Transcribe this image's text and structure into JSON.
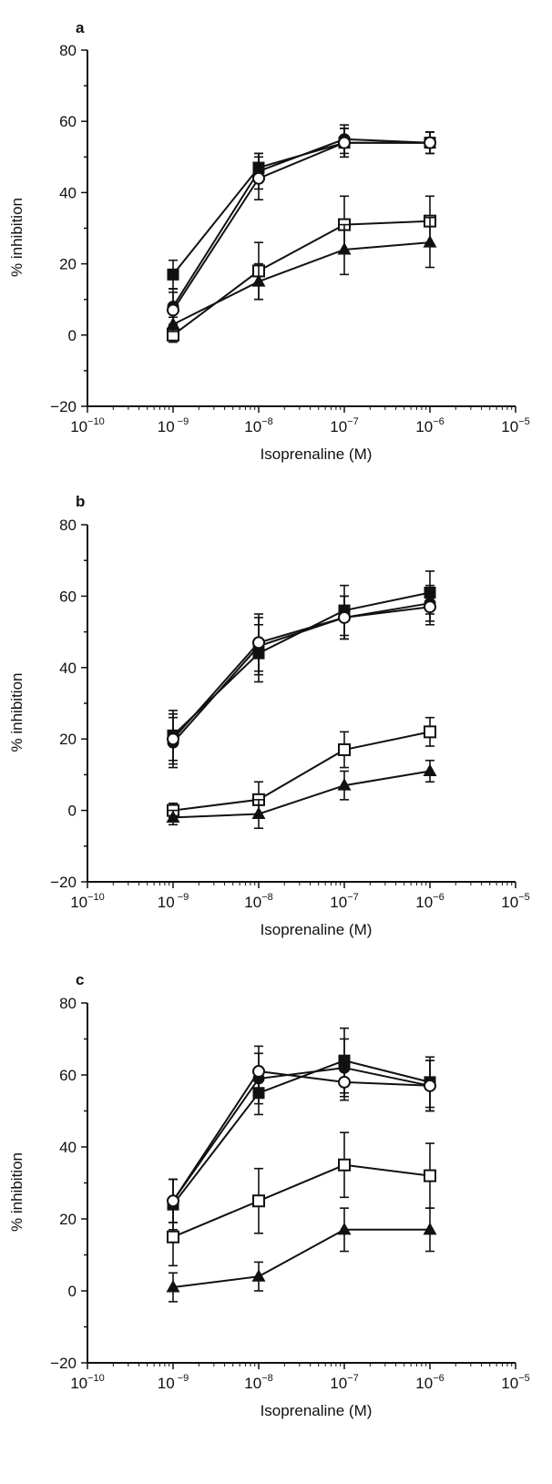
{
  "chart_data": [
    {
      "panel": "a",
      "type": "line",
      "xscale": "log",
      "xlim": [
        1e-10,
        1e-05
      ],
      "ylim": [
        -20,
        80
      ],
      "xlabel": "Isoprenaline (M)",
      "ylabel": "% inhibition",
      "x_ticks": [
        {
          "base": "10",
          "exp": "−10"
        },
        {
          "base": "10",
          "exp": " −9"
        },
        {
          "base": "10",
          "exp": "−8"
        },
        {
          "base": "10",
          "exp": "−7"
        },
        {
          "base": "10",
          "exp": "−6"
        },
        {
          "base": "10",
          "exp": "−5"
        }
      ],
      "y_ticks": [
        "−20",
        "0",
        "20",
        "40",
        "60",
        "80"
      ],
      "x": [
        1e-09,
        1e-08,
        1e-07,
        1e-06
      ],
      "series": [
        {
          "marker": "filled-square",
          "values": [
            17,
            47,
            54,
            54
          ],
          "errors": [
            4,
            4,
            4,
            3
          ]
        },
        {
          "marker": "filled-circle",
          "values": [
            8,
            46,
            55,
            54
          ],
          "errors": [
            5,
            5,
            4,
            3
          ]
        },
        {
          "marker": "open-circle",
          "values": [
            7,
            44,
            54,
            54
          ],
          "errors": [
            5,
            6,
            4,
            3
          ]
        },
        {
          "marker": "open-square",
          "values": [
            0,
            18,
            31,
            32
          ],
          "errors": [
            2,
            8,
            8,
            7
          ]
        },
        {
          "marker": "filled-triangle",
          "values": [
            3,
            15,
            24,
            26
          ],
          "errors": [
            2,
            5,
            7,
            7
          ]
        }
      ]
    },
    {
      "panel": "b",
      "type": "line",
      "xscale": "log",
      "xlim": [
        1e-10,
        1e-05
      ],
      "ylim": [
        -20,
        80
      ],
      "xlabel": "Isoprenaline (M)",
      "ylabel": "% inhibition",
      "x_ticks": [
        {
          "base": "10",
          "exp": "−10"
        },
        {
          "base": "10",
          "exp": " −9"
        },
        {
          "base": "10",
          "exp": "−8"
        },
        {
          "base": "10",
          "exp": "−7"
        },
        {
          "base": "10",
          "exp": "−6"
        },
        {
          "base": "10",
          "exp": "−5"
        }
      ],
      "y_ticks": [
        "−20",
        "0",
        "20",
        "40",
        "60",
        "80"
      ],
      "x": [
        1e-09,
        1e-08,
        1e-07,
        1e-06
      ],
      "series": [
        {
          "marker": "filled-square",
          "values": [
            21,
            44,
            56,
            61
          ],
          "errors": [
            7,
            8,
            7,
            6
          ]
        },
        {
          "marker": "filled-circle",
          "values": [
            19,
            46,
            54,
            58
          ],
          "errors": [
            7,
            8,
            6,
            5
          ]
        },
        {
          "marker": "open-circle",
          "values": [
            20,
            47,
            54,
            57
          ],
          "errors": [
            7,
            8,
            6,
            5
          ]
        },
        {
          "marker": "open-square",
          "values": [
            0,
            3,
            17,
            22
          ],
          "errors": [
            2,
            5,
            5,
            4
          ]
        },
        {
          "marker": "filled-triangle",
          "values": [
            -2,
            -1,
            7,
            11
          ],
          "errors": [
            2,
            4,
            4,
            3
          ]
        }
      ]
    },
    {
      "panel": "c",
      "type": "line",
      "xscale": "log",
      "xlim": [
        1e-10,
        1e-05
      ],
      "ylim": [
        -20,
        80
      ],
      "xlabel": "Isoprenaline (M)",
      "ylabel": "% inhibition",
      "x_ticks": [
        {
          "base": "10",
          "exp": "−10"
        },
        {
          "base": "10",
          "exp": " −9"
        },
        {
          "base": "10",
          "exp": "−8"
        },
        {
          "base": "10",
          "exp": "−7"
        },
        {
          "base": "10",
          "exp": "−6"
        },
        {
          "base": "10",
          "exp": "−5"
        }
      ],
      "y_ticks": [
        "−20",
        "0",
        "20",
        "40",
        "60",
        "80"
      ],
      "x": [
        1e-09,
        1e-08,
        1e-07,
        1e-06
      ],
      "series": [
        {
          "marker": "filled-square",
          "values": [
            24,
            55,
            64,
            58
          ],
          "errors": [
            7,
            6,
            9,
            7
          ]
        },
        {
          "marker": "filled-circle",
          "values": [
            25,
            59,
            62,
            57
          ],
          "errors": [
            6,
            7,
            8,
            7
          ]
        },
        {
          "marker": "open-circle",
          "values": [
            25,
            61,
            58,
            57
          ],
          "errors": [
            6,
            7,
            5,
            7
          ]
        },
        {
          "marker": "open-square",
          "values": [
            15,
            25,
            35,
            32
          ],
          "errors": [
            8,
            9,
            9,
            9
          ]
        },
        {
          "marker": "filled-triangle",
          "values": [
            1,
            4,
            17,
            17
          ],
          "errors": [
            4,
            4,
            6,
            6
          ]
        }
      ]
    }
  ]
}
